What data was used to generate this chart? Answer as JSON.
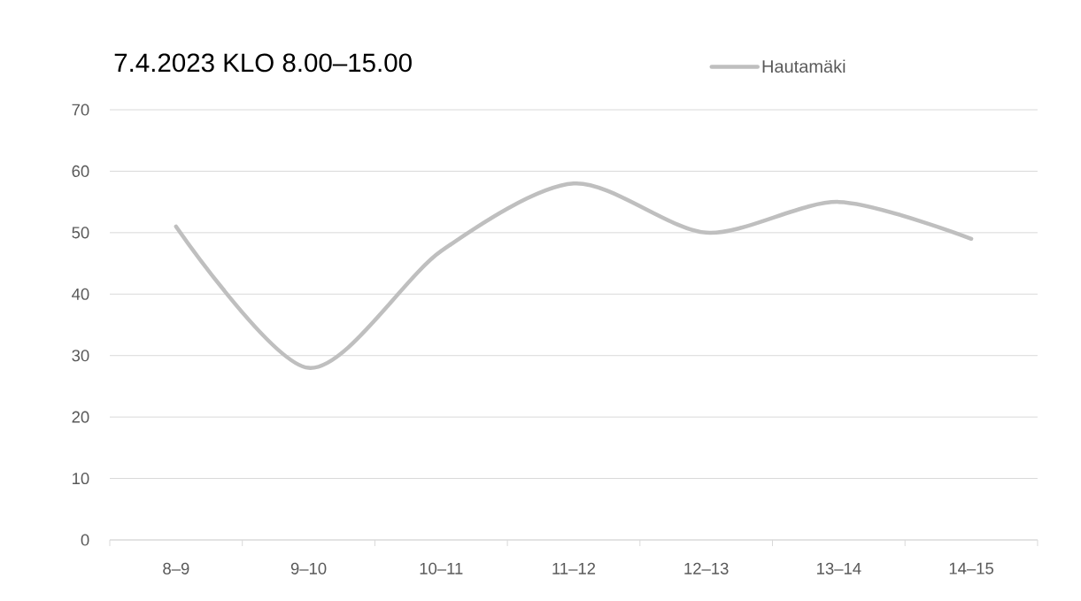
{
  "chart_data": {
    "type": "line",
    "title": "7.4.2023 KLO 8.00–15.00",
    "categories": [
      "8–9",
      "9–10",
      "10–11",
      "11–12",
      "12–13",
      "13–14",
      "14–15"
    ],
    "series": [
      {
        "name": "Hautamäki",
        "color": "#bfbfbf",
        "values": [
          51,
          28,
          47,
          58,
          50,
          55,
          49
        ]
      }
    ],
    "ylim": [
      0,
      70
    ],
    "yticks": [
      0,
      10,
      20,
      30,
      40,
      50,
      60,
      70
    ],
    "grid": "y",
    "legend": "top",
    "marker": "none",
    "line_style": "solid"
  }
}
